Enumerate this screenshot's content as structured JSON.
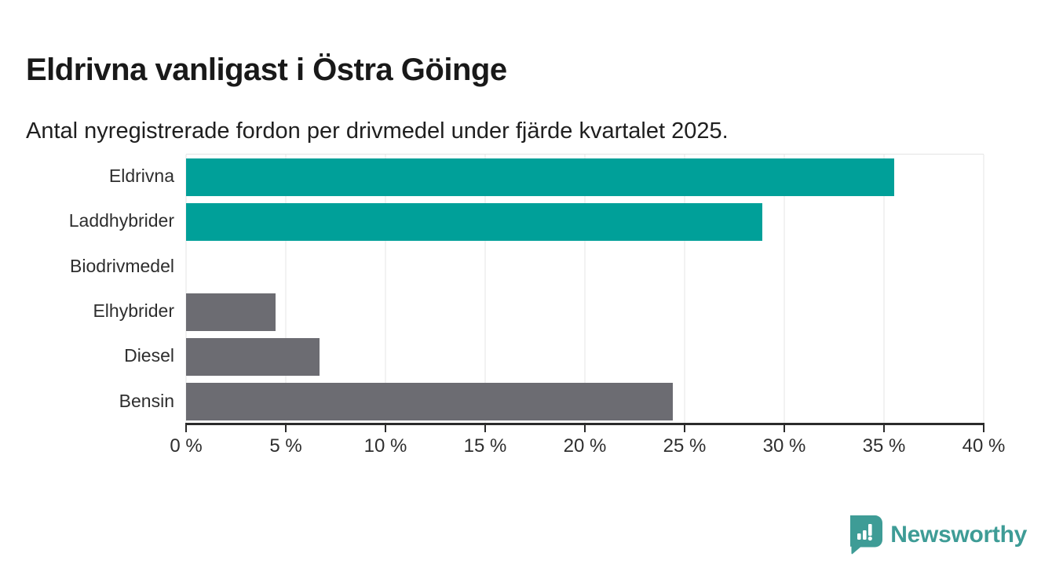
{
  "chart_data": {
    "type": "bar",
    "orientation": "horizontal",
    "title": "Eldrivna vanligast i Östra Göinge",
    "subtitle": "Antal nyregistrerade fordon per drivmedel under fjärde kvartalet 2025.",
    "categories": [
      "Eldrivna",
      "Laddhybrider",
      "Biodrivmedel",
      "Elhybrider",
      "Diesel",
      "Bensin"
    ],
    "values": [
      35.5,
      28.9,
      0,
      4.5,
      6.7,
      24.4
    ],
    "value_unit": "%",
    "bar_colors": [
      "#00a099",
      "#00a099",
      "#6c6c72",
      "#6c6c72",
      "#6c6c72",
      "#6c6c72"
    ],
    "xlim": [
      0,
      40
    ],
    "x_ticks": [
      0,
      5,
      10,
      15,
      20,
      25,
      30,
      35,
      40
    ],
    "x_tick_labels": [
      "0 %",
      "5 %",
      "10 %",
      "15 %",
      "20 %",
      "25 %",
      "30 %",
      "35 %",
      "40 %"
    ],
    "grid": "vertical",
    "legend": "none"
  },
  "footer": {
    "brand": "Newsworthy",
    "logo_icon": "speech-bubble-bar-chart-icon"
  },
  "colors": {
    "accent_teal": "#00a099",
    "neutral_gray": "#6c6c72",
    "brand_teal": "#3e9c96",
    "axis": "#2b2b2b",
    "gridline": "#e4e4e4",
    "text": "#191919"
  }
}
